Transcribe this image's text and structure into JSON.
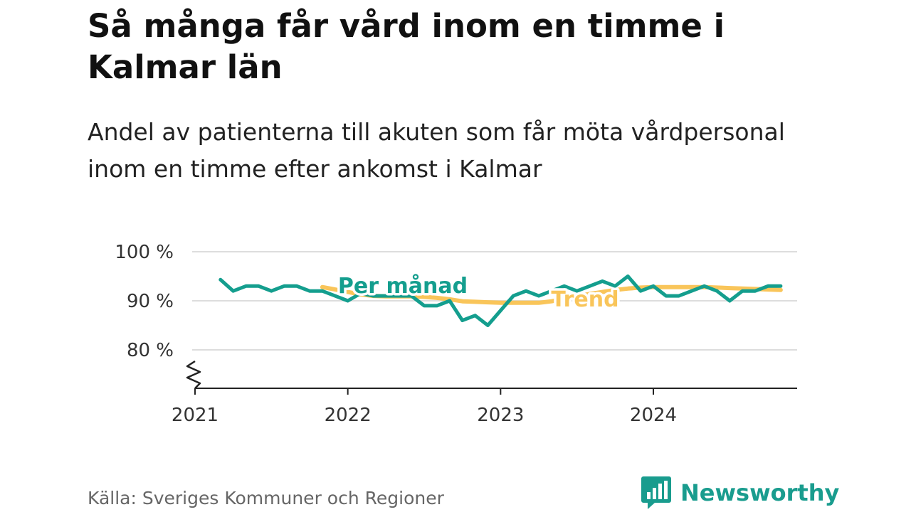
{
  "title": "Så många får vård inom en timme i Kalmar län",
  "subtitle": "Andel av patienterna till akuten som får möta vårdpersonal inom en timme efter ankomst i Kalmar",
  "source": "Källa: Sveriges Kommuner och Regioner",
  "brand": {
    "name": "Newsworthy",
    "icon": "newsworthy-logo-icon",
    "color": "#199c8e"
  },
  "colors": {
    "monthly": "#149e8e",
    "trend": "#f9c55a",
    "grid": "#dddddd",
    "axis": "#222222"
  },
  "chart_data": {
    "type": "line",
    "title": "Så många får vård inom en timme i Kalmar län",
    "subtitle": "Andel av patienterna till akuten som får möta vårdpersonal inom en timme efter ankomst i Kalmar",
    "xlabel": "",
    "ylabel": "",
    "ylim": [
      72,
      100
    ],
    "xlim": [
      "2021-01",
      "2024-12"
    ],
    "y_axis_broken": true,
    "y_ticks": [
      {
        "value": 80,
        "label": "80 %"
      },
      {
        "value": 90,
        "label": "90 %"
      },
      {
        "value": 100,
        "label": "100 %"
      }
    ],
    "x_ticks": [
      {
        "value": "2021-01",
        "label": "2021"
      },
      {
        "value": "2022-01",
        "label": "2022"
      },
      {
        "value": "2023-01",
        "label": "2023"
      },
      {
        "value": "2024-01",
        "label": "2024"
      }
    ],
    "grid": true,
    "legend": "inline labels",
    "series": [
      {
        "name": "Per månad",
        "color": "#149e8e",
        "x": [
          "2021-03",
          "2021-04",
          "2021-05",
          "2021-06",
          "2021-07",
          "2021-08",
          "2021-09",
          "2021-10",
          "2021-11",
          "2021-12",
          "2022-01",
          "2022-02",
          "2022-03",
          "2022-04",
          "2022-05",
          "2022-06",
          "2022-07",
          "2022-08",
          "2022-09",
          "2022-10",
          "2022-11",
          "2022-12",
          "2023-01",
          "2023-02",
          "2023-03",
          "2023-04",
          "2023-05",
          "2023-06",
          "2023-07",
          "2023-08",
          "2023-09",
          "2023-10",
          "2023-11",
          "2023-12",
          "2024-01",
          "2024-02",
          "2024-03",
          "2024-04",
          "2024-05",
          "2024-06",
          "2024-07",
          "2024-08",
          "2024-09",
          "2024-10",
          "2024-11"
        ],
        "values": [
          94.3,
          92.0,
          93.0,
          93.0,
          92.0,
          93.0,
          93.0,
          92.0,
          92.0,
          91.0,
          90.0,
          91.5,
          91.0,
          91.0,
          91.0,
          91.0,
          89.0,
          89.0,
          90.0,
          86.0,
          87.0,
          85.0,
          88.0,
          91.0,
          92.0,
          91.0,
          92.0,
          93.0,
          92.0,
          93.0,
          94.0,
          93.0,
          95.0,
          92.0,
          93.0,
          91.0,
          91.0,
          92.0,
          93.0,
          92.0,
          90.0,
          92.0,
          92.0,
          93.0,
          93.0
        ]
      },
      {
        "name": "Trend",
        "color": "#f9c55a",
        "x": [
          "2021-11",
          "2021-12",
          "2022-01",
          "2022-02",
          "2022-03",
          "2022-04",
          "2022-05",
          "2022-06",
          "2022-07",
          "2022-08",
          "2022-09",
          "2022-10",
          "2022-11",
          "2022-12",
          "2023-01",
          "2023-02",
          "2023-03",
          "2023-04",
          "2023-05",
          "2023-06",
          "2023-07",
          "2023-08",
          "2023-09",
          "2023-10",
          "2023-11",
          "2023-12",
          "2024-01",
          "2024-02",
          "2024-03",
          "2024-04",
          "2024-05",
          "2024-06",
          "2024-07",
          "2024-08",
          "2024-09",
          "2024-10",
          "2024-11"
        ],
        "values": [
          92.8,
          92.3,
          91.8,
          91.3,
          91.0,
          90.9,
          90.9,
          90.9,
          90.8,
          90.6,
          90.3,
          89.9,
          89.8,
          89.7,
          89.6,
          89.6,
          89.6,
          89.6,
          89.9,
          90.4,
          90.9,
          91.4,
          91.8,
          92.2,
          92.5,
          92.7,
          92.8,
          92.8,
          92.8,
          92.8,
          92.8,
          92.7,
          92.6,
          92.5,
          92.4,
          92.3,
          92.2
        ]
      }
    ]
  }
}
